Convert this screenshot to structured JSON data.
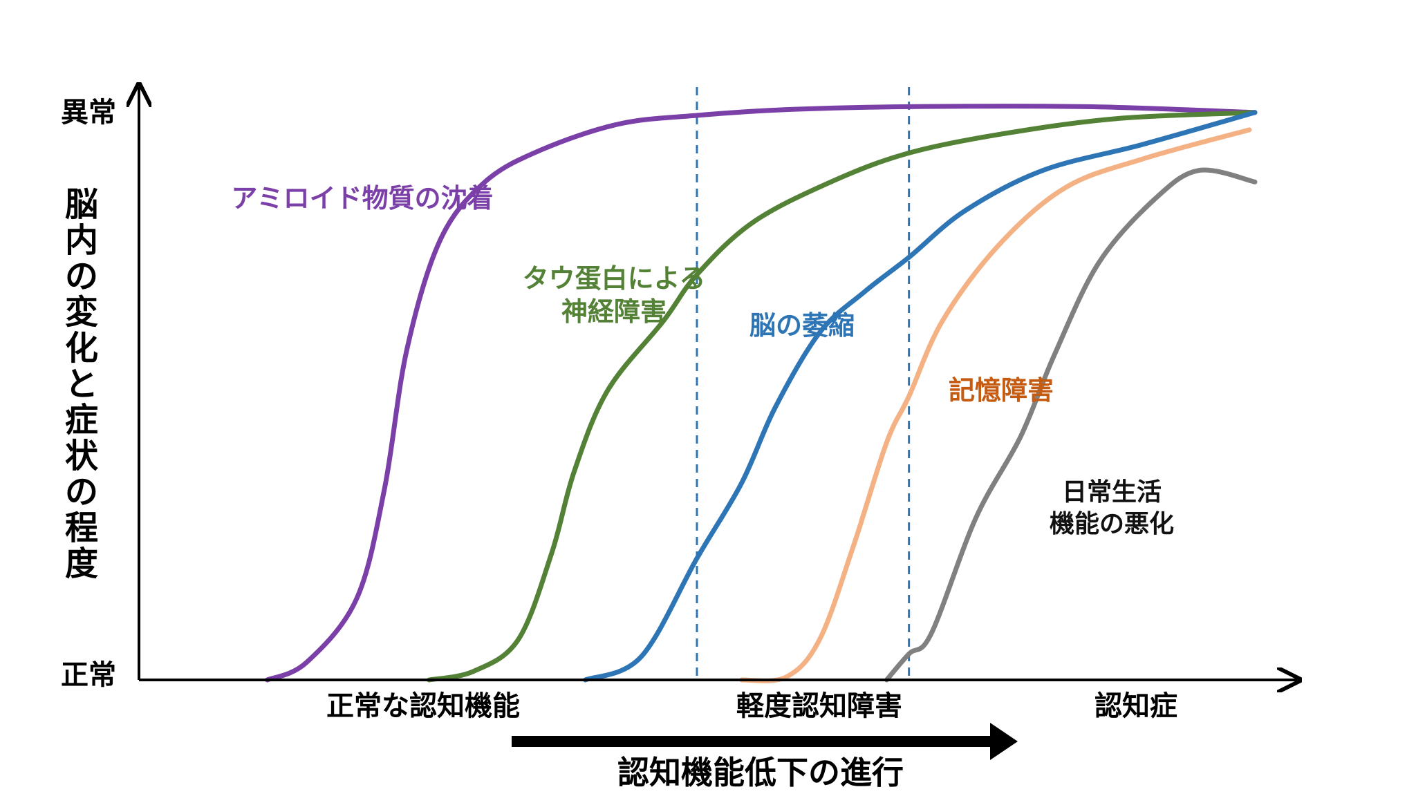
{
  "chart_data": {
    "type": "line",
    "ylabel": "脳内の変化と症状の程度",
    "y_tick_labels": {
      "top": "異常",
      "bottom": "正常"
    },
    "x_stage_labels": [
      "正常な認知機能",
      "軽度認知障害",
      "認知症"
    ],
    "progression_label": "認知機能低下の進行",
    "x_range": [
      0,
      100
    ],
    "y_range": [
      0,
      100
    ],
    "stage_boundaries": [
      50,
      69
    ],
    "series": [
      {
        "name": "アミロイド物質の沈着",
        "color": "#7b3fa8",
        "points": [
          [
            11.5,
            0
          ],
          [
            15,
            3
          ],
          [
            19.5,
            14
          ],
          [
            22,
            33
          ],
          [
            24,
            57
          ],
          [
            27,
            76
          ],
          [
            31,
            86
          ],
          [
            36,
            91.5
          ],
          [
            43,
            96
          ],
          [
            50,
            97.5
          ],
          [
            58,
            98.5
          ],
          [
            69,
            99
          ],
          [
            85,
            99
          ],
          [
            100,
            98
          ]
        ]
      },
      {
        "name": "タウ蛋白による\n神経障害",
        "color": "#538135",
        "points": [
          [
            26,
            0
          ],
          [
            30,
            1.5
          ],
          [
            34,
            7
          ],
          [
            37,
            22
          ],
          [
            39,
            36
          ],
          [
            42,
            50
          ],
          [
            47,
            62
          ],
          [
            50,
            70
          ],
          [
            55,
            79
          ],
          [
            62,
            86
          ],
          [
            69,
            91
          ],
          [
            78,
            94.5
          ],
          [
            88,
            97
          ],
          [
            100,
            98
          ]
        ]
      },
      {
        "name": "脳の萎縮",
        "color": "#2e75b6",
        "points": [
          [
            40,
            0
          ],
          [
            45,
            4
          ],
          [
            50,
            21
          ],
          [
            54,
            34
          ],
          [
            57,
            47
          ],
          [
            61,
            60
          ],
          [
            65,
            67
          ],
          [
            69,
            73
          ],
          [
            74,
            81
          ],
          [
            81,
            88
          ],
          [
            90,
            92.5
          ],
          [
            100,
            98
          ]
        ]
      },
      {
        "name": "記憶障害",
        "color": "#f4b183",
        "points": [
          [
            54,
            0
          ],
          [
            58,
            0.5
          ],
          [
            61,
            7
          ],
          [
            64,
            23
          ],
          [
            67,
            41
          ],
          [
            69,
            49
          ],
          [
            72,
            62
          ],
          [
            77,
            75
          ],
          [
            83,
            85
          ],
          [
            90,
            90
          ],
          [
            99.5,
            95
          ]
        ]
      },
      {
        "name": "日常生活\n機能の悪化",
        "color": "#808080",
        "points": [
          [
            67,
            0
          ],
          [
            69,
            4.5
          ],
          [
            71,
            8
          ],
          [
            75,
            28
          ],
          [
            79,
            42
          ],
          [
            82,
            56
          ],
          [
            86,
            72
          ],
          [
            91,
            83
          ],
          [
            95,
            88
          ],
          [
            100,
            86
          ]
        ]
      }
    ]
  },
  "colors": {
    "axis": "#000000",
    "boundary": "#2e75b6",
    "arrow": "#000000"
  }
}
